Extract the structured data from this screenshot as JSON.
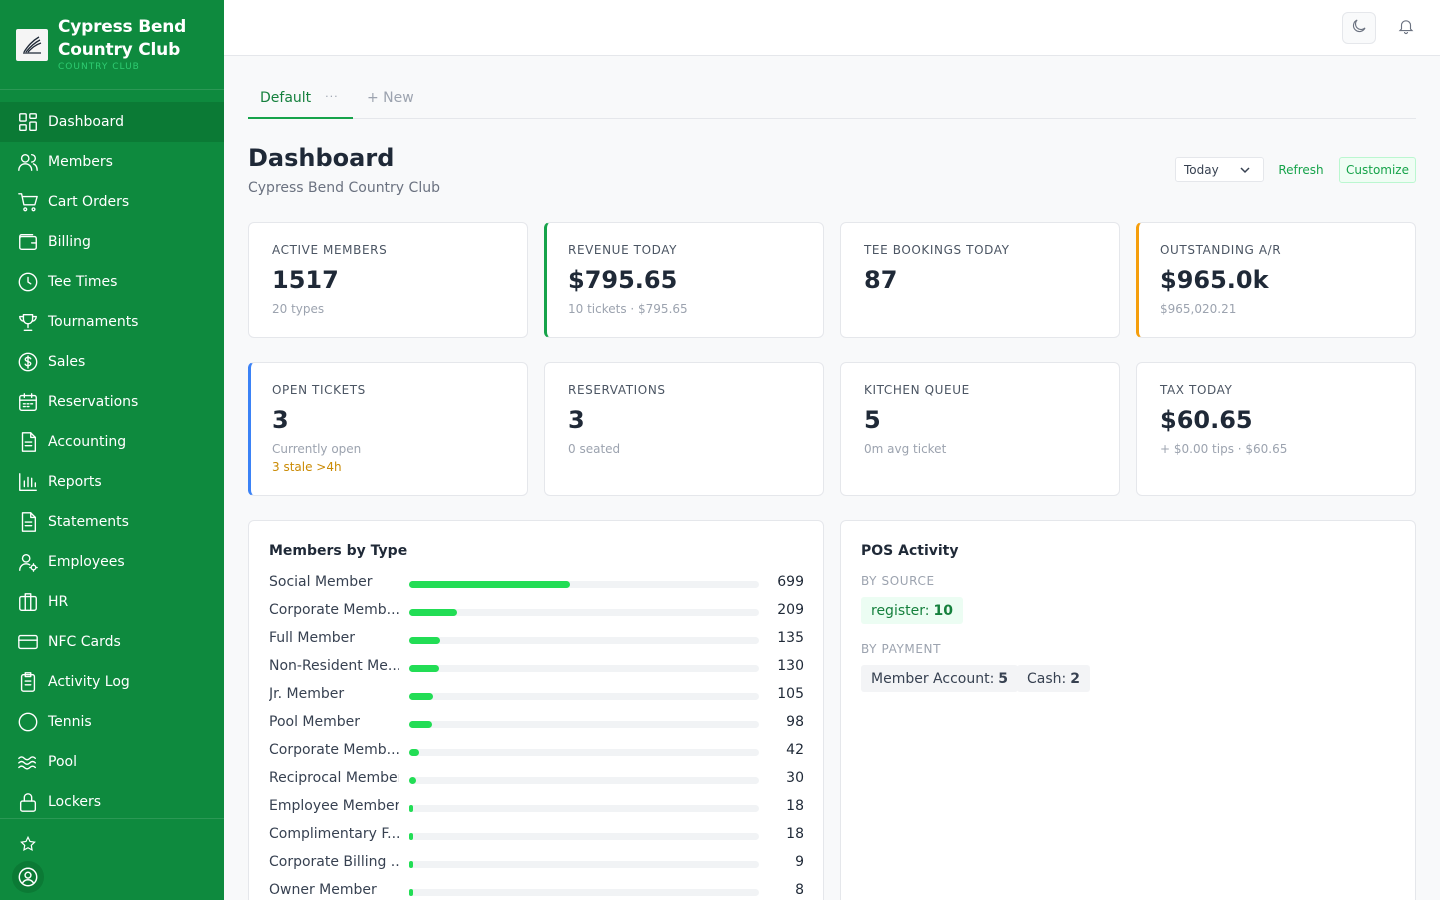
{
  "brand": {
    "name_line1": "Cypress Bend",
    "name_line2": "Country Club",
    "subtitle": "COUNTRY CLUB"
  },
  "sidebar": {
    "items": [
      {
        "label": "Dashboard",
        "icon": "grid-icon",
        "active": true
      },
      {
        "label": "Members",
        "icon": "users-icon"
      },
      {
        "label": "Cart Orders",
        "icon": "cart-icon"
      },
      {
        "label": "Billing",
        "icon": "wallet-icon"
      },
      {
        "label": "Tee Times",
        "icon": "clock-icon"
      },
      {
        "label": "Tournaments",
        "icon": "trophy-icon"
      },
      {
        "label": "Sales",
        "icon": "dollar-icon"
      },
      {
        "label": "Reservations",
        "icon": "calendar-icon"
      },
      {
        "label": "Accounting",
        "icon": "document-icon"
      },
      {
        "label": "Reports",
        "icon": "bar-chart-icon"
      },
      {
        "label": "Statements",
        "icon": "document-icon"
      },
      {
        "label": "Employees",
        "icon": "user-settings-icon"
      },
      {
        "label": "HR",
        "icon": "briefcase-icon"
      },
      {
        "label": "NFC Cards",
        "icon": "credit-card-icon"
      },
      {
        "label": "Activity Log",
        "icon": "clipboard-icon"
      },
      {
        "label": "Tennis",
        "icon": "circle-icon"
      },
      {
        "label": "Pool",
        "icon": "waves-icon"
      },
      {
        "label": "Lockers",
        "icon": "lock-icon"
      }
    ]
  },
  "tabs": {
    "default_label": "Default",
    "dots": "···",
    "new_label": "+ New"
  },
  "header": {
    "title": "Dashboard",
    "subtitle": "Cypress Bend Country Club",
    "range": "Today",
    "refresh_label": "Refresh",
    "customize_label": "Customize"
  },
  "stats": [
    {
      "label": "ACTIVE MEMBERS",
      "value": "1517",
      "sub": "20 types"
    },
    {
      "label": "REVENUE TODAY",
      "value": "$795.65",
      "sub": "10 tickets · $795.65",
      "accent": "#16a34a"
    },
    {
      "label": "TEE BOOKINGS TODAY",
      "value": "87"
    },
    {
      "label": "OUTSTANDING A/R",
      "value": "$965.0k",
      "sub": "$965,020.21",
      "accent": "#f59e0b"
    },
    {
      "label": "OPEN TICKETS",
      "value": "3",
      "sub": "Currently open",
      "warn": "3 stale >4h",
      "accent": "#3b82f6"
    },
    {
      "label": "RESERVATIONS",
      "value": "3",
      "sub": "0 seated"
    },
    {
      "label": "KITCHEN QUEUE",
      "value": "5",
      "sub": "0m avg ticket"
    },
    {
      "label": "TAX TODAY",
      "value": "$60.65",
      "sub": "+ $0.00 tips · $60.65"
    }
  ],
  "members_by_type": {
    "title": "Members by Type",
    "max": 1517,
    "rows": [
      {
        "name": "Social Member",
        "count": 699
      },
      {
        "name": "Corporate Memb...",
        "count": 209
      },
      {
        "name": "Full Member",
        "count": 135
      },
      {
        "name": "Non-Resident Me...",
        "count": 130
      },
      {
        "name": "Jr. Member",
        "count": 105
      },
      {
        "name": "Pool Member",
        "count": 98
      },
      {
        "name": "Corporate Memb...",
        "count": 42
      },
      {
        "name": "Reciprocal Member",
        "count": 30
      },
      {
        "name": "Employee Member",
        "count": 18
      },
      {
        "name": "Complimentary F...",
        "count": 18
      },
      {
        "name": "Corporate Billing ...",
        "count": 9
      },
      {
        "name": "Owner Member",
        "count": 8
      }
    ]
  },
  "pos_activity": {
    "title": "POS Activity",
    "by_source_label": "BY SOURCE",
    "sources": [
      {
        "label": "register:",
        "value": "10"
      }
    ],
    "by_payment_label": "BY PAYMENT",
    "payments": [
      {
        "label": "Member Account:",
        "value": "5"
      },
      {
        "label": "Cash:",
        "value": "2"
      }
    ]
  },
  "colors": {
    "sidebar_bg": "#0e8a3e",
    "accent_green": "#16a34a",
    "bar_fill": "#22dd55"
  }
}
